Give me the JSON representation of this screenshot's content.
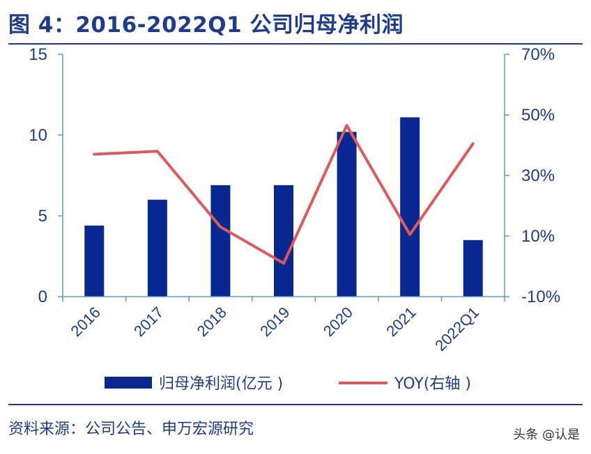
{
  "title": "图 4：2016-2022Q1 公司归母净利润",
  "source": "资料来源：公司公告、申万宏源研究",
  "watermark": "头条 @认是",
  "colors": {
    "bar": "#0a2891",
    "line": "#e0585c",
    "axis": "#5b9bd5",
    "text": "#1f3c8c"
  },
  "chart_data": {
    "type": "bar",
    "categories": [
      "2016",
      "2017",
      "2018",
      "2019",
      "2020",
      "2021",
      "2022Q1"
    ],
    "series": [
      {
        "name": "归母净利润(亿元 )",
        "type": "bar",
        "axis": "left",
        "values": [
          4.4,
          6.0,
          6.9,
          6.9,
          10.2,
          11.1,
          3.5
        ]
      },
      {
        "name": "YOY(右轴 )",
        "type": "line",
        "axis": "right",
        "values": [
          0.37,
          0.38,
          0.13,
          0.01,
          0.465,
          0.105,
          0.405
        ]
      }
    ],
    "y_left": {
      "ylim": [
        0,
        15
      ],
      "ticks": [
        0,
        5,
        10,
        15
      ],
      "tick_labels": [
        "0",
        "5",
        "10",
        "15"
      ]
    },
    "y_right": {
      "ylim": [
        -0.1,
        0.7
      ],
      "ticks": [
        -0.1,
        0.1,
        0.3,
        0.5,
        0.7
      ],
      "tick_labels": [
        "-10%",
        "10%",
        "30%",
        "50%",
        "70%"
      ]
    },
    "legend_position": "bottom",
    "grid": false
  }
}
